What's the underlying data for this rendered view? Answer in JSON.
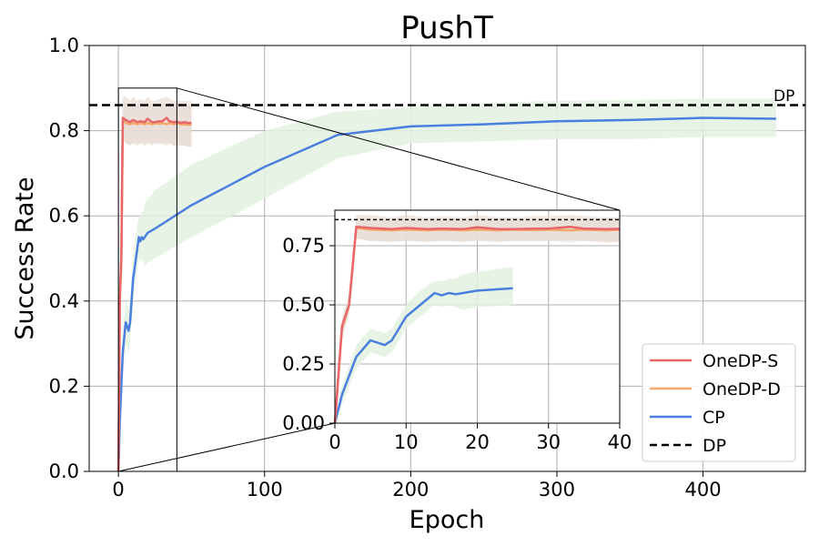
{
  "colors": {
    "onedp_s": "#e8656a",
    "onedp_d": "#f2a86a",
    "cp": "#4a7fe0",
    "dp": "#000000",
    "cp_band": "#e3f2e0",
    "onedp_band": "#e8ddd6",
    "grid": "#b0b0b0"
  },
  "chart_data": {
    "type": "line",
    "title": "PushT",
    "xlabel": "Epoch",
    "ylabel": "Success Rate",
    "xlim": [
      -20,
      470
    ],
    "ylim": [
      0,
      1.0
    ],
    "xticks": [
      0,
      100,
      200,
      300,
      400
    ],
    "yticks": [
      0.0,
      0.2,
      0.4,
      0.6,
      0.8,
      1.0
    ],
    "xtick_labels": [
      "0",
      "100",
      "200",
      "300",
      "400"
    ],
    "ytick_labels": [
      "0.0",
      "0.2",
      "0.4",
      "0.6",
      "0.8",
      "1.0"
    ],
    "grid": true,
    "legend_position": "bottom-right",
    "dp_value": 0.86,
    "dp_label": "DP",
    "series": [
      {
        "name": "OneDP-S",
        "x": [
          0,
          1,
          2,
          3,
          5,
          8,
          10,
          13,
          15,
          18,
          20,
          23,
          25,
          28,
          30,
          33,
          35,
          38,
          40,
          43,
          45,
          48,
          50
        ],
        "y": [
          0.0,
          0.41,
          0.5,
          0.83,
          0.825,
          0.82,
          0.825,
          0.82,
          0.822,
          0.82,
          0.828,
          0.82,
          0.82,
          0.822,
          0.822,
          0.83,
          0.822,
          0.82,
          0.821,
          0.818,
          0.82,
          0.818,
          0.818
        ],
        "band_upper": [
          0.0,
          0.45,
          0.54,
          0.88,
          0.88,
          0.87,
          0.88,
          0.87,
          0.875,
          0.87,
          0.88,
          0.87,
          0.87,
          0.875,
          0.875,
          0.88,
          0.875,
          0.87,
          0.87,
          0.87,
          0.87,
          0.87,
          0.87
        ],
        "band_lower": [
          0.0,
          0.37,
          0.46,
          0.78,
          0.77,
          0.77,
          0.77,
          0.77,
          0.77,
          0.77,
          0.775,
          0.77,
          0.77,
          0.77,
          0.77,
          0.775,
          0.77,
          0.765,
          0.765,
          0.765,
          0.765,
          0.762,
          0.762
        ]
      },
      {
        "name": "OneDP-D",
        "x": [
          0,
          1,
          2,
          3,
          5,
          8,
          10,
          13,
          15,
          18,
          20,
          23,
          25,
          28,
          30,
          33,
          35,
          38,
          40,
          43,
          45,
          48,
          50
        ],
        "y": [
          0.0,
          0.4,
          0.5,
          0.825,
          0.818,
          0.815,
          0.818,
          0.815,
          0.818,
          0.815,
          0.818,
          0.815,
          0.818,
          0.816,
          0.818,
          0.815,
          0.818,
          0.815,
          0.818,
          0.815,
          0.815,
          0.814,
          0.814
        ],
        "band_upper": [
          0.0,
          0.44,
          0.54,
          0.87,
          0.865,
          0.86,
          0.865,
          0.86,
          0.865,
          0.86,
          0.865,
          0.86,
          0.865,
          0.862,
          0.865,
          0.86,
          0.865,
          0.86,
          0.865,
          0.86,
          0.86,
          0.86,
          0.86
        ],
        "band_lower": [
          0.0,
          0.36,
          0.46,
          0.78,
          0.77,
          0.765,
          0.77,
          0.765,
          0.77,
          0.765,
          0.77,
          0.765,
          0.77,
          0.77,
          0.77,
          0.765,
          0.77,
          0.765,
          0.77,
          0.765,
          0.765,
          0.762,
          0.762
        ]
      },
      {
        "name": "CP",
        "x": [
          0,
          1,
          3,
          5,
          7,
          8,
          10,
          12,
          14,
          15,
          16,
          17,
          18,
          20,
          25,
          50,
          100,
          150,
          200,
          250,
          300,
          350,
          400,
          450
        ],
        "y": [
          0.0,
          0.12,
          0.28,
          0.35,
          0.33,
          0.35,
          0.45,
          0.5,
          0.55,
          0.54,
          0.55,
          0.545,
          0.55,
          0.56,
          0.57,
          0.625,
          0.715,
          0.79,
          0.81,
          0.815,
          0.822,
          0.825,
          0.83,
          0.828
        ],
        "band_upper": [
          0.0,
          0.16,
          0.33,
          0.4,
          0.38,
          0.4,
          0.5,
          0.56,
          0.6,
          0.6,
          0.61,
          0.61,
          0.63,
          0.64,
          0.66,
          0.72,
          0.8,
          0.845,
          0.855,
          0.865,
          0.87,
          0.872,
          0.875,
          0.875
        ],
        "band_lower": [
          0.0,
          0.08,
          0.23,
          0.3,
          0.28,
          0.3,
          0.4,
          0.45,
          0.5,
          0.49,
          0.5,
          0.49,
          0.48,
          0.49,
          0.5,
          0.55,
          0.64,
          0.735,
          0.77,
          0.775,
          0.78,
          0.78,
          0.785,
          0.785
        ]
      }
    ],
    "inset": {
      "xlim": [
        0,
        40
      ],
      "ylim": [
        0,
        0.9
      ],
      "xticks": [
        0,
        10,
        20,
        30,
        40
      ],
      "yticks": [
        0.0,
        0.25,
        0.5,
        0.75
      ],
      "xtick_labels": [
        "0",
        "10",
        "20",
        "30",
        "40"
      ],
      "ytick_labels": [
        "0.00",
        "0.25",
        "0.50",
        "0.75"
      ],
      "zoom_xlim": [
        0,
        40
      ],
      "zoom_ylim": [
        0,
        0.9
      ]
    }
  }
}
